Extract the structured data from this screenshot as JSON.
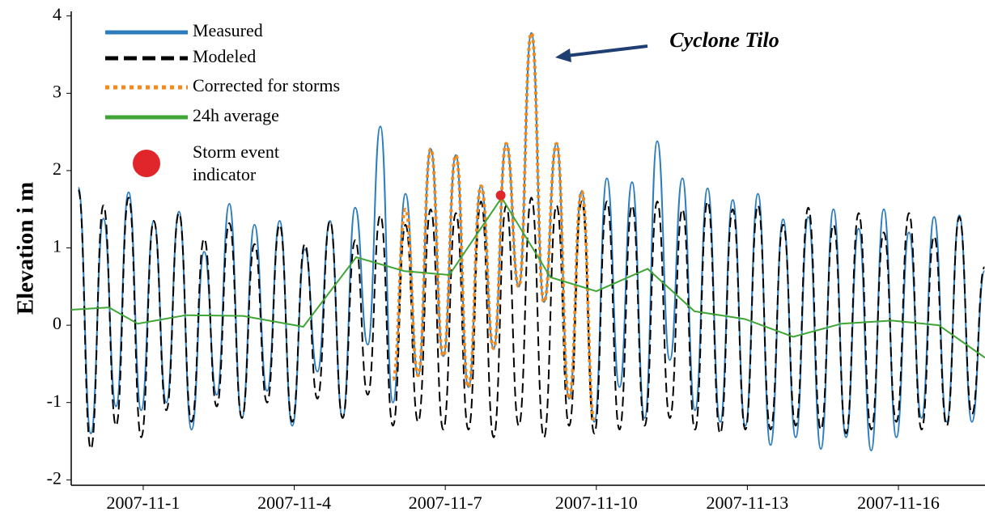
{
  "chart_data": {
    "type": "line",
    "y_label": "Elevation i m",
    "annotation": "Cyclone Tilo",
    "xlim": [
      -0.43,
      17.72
    ],
    "ylim": [
      -2.07,
      4.06
    ],
    "yticks": [
      -2,
      -1,
      0,
      1,
      2,
      3,
      4
    ],
    "xticks": [
      {
        "value": 1,
        "label": "2007-11-1"
      },
      {
        "value": 4,
        "label": "2007-11-4"
      },
      {
        "value": 7,
        "label": "2007-11-7"
      },
      {
        "value": 10,
        "label": "2007-11-10"
      },
      {
        "value": 13,
        "label": "2007-11-13"
      },
      {
        "value": 16,
        "label": "2007-11-16"
      }
    ],
    "legend": "upper left",
    "x": [
      -0.29,
      -0.04,
      0.21,
      0.46,
      0.71,
      0.96,
      1.21,
      1.46,
      1.71,
      1.96,
      2.21,
      2.46,
      2.71,
      2.96,
      3.21,
      3.46,
      3.71,
      3.96,
      4.21,
      4.46,
      4.71,
      4.96,
      5.21,
      5.46,
      5.71,
      5.96,
      6.21,
      6.46,
      6.71,
      6.96,
      7.21,
      7.46,
      7.71,
      7.96,
      8.21,
      8.46,
      8.71,
      8.96,
      9.21,
      9.46,
      9.71,
      9.96,
      10.21,
      10.46,
      10.71,
      10.96,
      11.21,
      11.46,
      11.71,
      11.96,
      12.21,
      12.46,
      12.71,
      12.96,
      13.21,
      13.46,
      13.71,
      13.96,
      14.21,
      14.46,
      14.71,
      14.96,
      15.21,
      15.46,
      15.71,
      15.96,
      16.21,
      16.46,
      16.71,
      16.96,
      17.21,
      17.46,
      17.71
    ],
    "series": [
      {
        "name": "Measured",
        "color": "#2e7ebf",
        "line_style": "solid",
        "smooth": true,
        "values": [
          1.78,
          -1.4,
          1.38,
          -1.05,
          1.72,
          -1.1,
          1.35,
          -1.0,
          1.47,
          -1.35,
          0.95,
          -0.9,
          1.57,
          -1.2,
          1.3,
          -0.85,
          1.35,
          -1.3,
          0.98,
          -0.6,
          1.35,
          -1.2,
          1.52,
          -0.25,
          2.57,
          -1.0,
          1.7,
          -0.65,
          2.28,
          -0.4,
          2.2,
          -0.8,
          1.8,
          -0.3,
          2.35,
          0.5,
          3.78,
          0.3,
          2.35,
          -0.95,
          1.73,
          -1.25,
          1.9,
          -0.8,
          1.85,
          -1.2,
          2.38,
          -0.45,
          1.9,
          -1.1,
          1.77,
          -1.25,
          1.62,
          -1.3,
          1.7,
          -1.55,
          1.37,
          -1.45,
          1.4,
          -1.6,
          1.5,
          -1.45,
          1.25,
          -1.62,
          1.5,
          -1.45,
          1.2,
          -1.2,
          1.4,
          -1.25,
          1.42,
          -1.25,
          0.7
        ]
      },
      {
        "name": "Modeled",
        "color": "#000000",
        "line_style": "dashed",
        "smooth": true,
        "values": [
          1.75,
          -1.6,
          1.55,
          -1.3,
          1.65,
          -1.45,
          1.35,
          -1.1,
          1.45,
          -1.25,
          1.12,
          -1.05,
          1.32,
          -1.2,
          1.05,
          -1.0,
          1.3,
          -1.25,
          1.05,
          -0.95,
          1.35,
          -1.2,
          1.1,
          -0.9,
          1.42,
          -1.3,
          1.3,
          -1.25,
          1.5,
          -1.35,
          1.45,
          -1.35,
          1.6,
          -1.45,
          1.55,
          -1.3,
          1.65,
          -1.45,
          1.55,
          -1.3,
          1.6,
          -1.4,
          1.6,
          -1.35,
          1.55,
          -1.3,
          1.6,
          -1.2,
          1.5,
          -1.35,
          1.6,
          -1.4,
          1.5,
          -1.35,
          1.55,
          -1.35,
          1.3,
          -1.3,
          1.52,
          -1.35,
          1.3,
          -1.4,
          1.45,
          -1.35,
          1.2,
          -1.25,
          1.45,
          -1.35,
          1.15,
          -1.3,
          1.4,
          -1.15,
          0.75
        ]
      },
      {
        "name": "Corrected for storms",
        "color": "#f28a1e",
        "line_style": "dotted",
        "smooth": true,
        "values": [
          null,
          null,
          null,
          null,
          null,
          null,
          null,
          null,
          null,
          null,
          null,
          null,
          null,
          null,
          null,
          null,
          null,
          null,
          null,
          null,
          null,
          null,
          null,
          null,
          null,
          -0.7,
          1.5,
          -0.65,
          2.28,
          -0.4,
          2.2,
          -0.8,
          1.8,
          -0.3,
          2.35,
          0.5,
          3.78,
          0.3,
          2.35,
          -0.95,
          1.73,
          -1.25,
          null,
          null,
          null,
          null,
          null,
          null,
          null,
          null,
          null,
          null,
          null,
          null,
          null,
          null,
          null,
          null,
          null,
          null,
          null,
          null,
          null,
          null,
          null,
          null,
          null,
          null,
          null,
          null,
          null,
          null,
          null
        ]
      },
      {
        "name": "24h average",
        "color": "#3fa535",
        "line_style": "solid",
        "smooth": false,
        "x": [
          -0.43,
          0.32,
          0.89,
          1.85,
          2.98,
          4.18,
          5.23,
          6.19,
          7.08,
          8.12,
          9.09,
          10.0,
          11.02,
          11.95,
          12.95,
          13.91,
          14.87,
          15.87,
          16.8,
          17.72
        ],
        "values": [
          0.2,
          0.23,
          0.02,
          0.13,
          0.12,
          -0.02,
          0.88,
          0.7,
          0.65,
          1.65,
          0.62,
          0.44,
          0.73,
          0.18,
          0.08,
          -0.15,
          0.02,
          0.06,
          0,
          -0.42
        ]
      },
      {
        "name": "Storm event indicator",
        "color": "#e0262a",
        "marker": "circle",
        "x": [
          8.1
        ],
        "values": [
          1.68
        ]
      }
    ]
  }
}
